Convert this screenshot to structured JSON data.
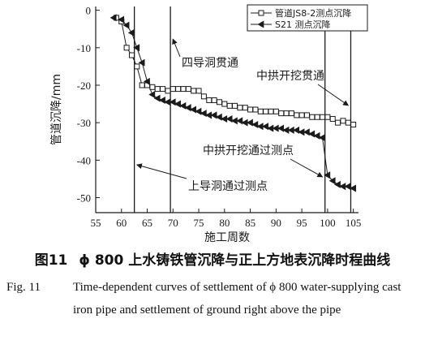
{
  "figure": {
    "caption_cn_id": "图11",
    "caption_cn_text": "ϕ 800 上水铸铁管沉降与正上方地表沉降时程曲线",
    "caption_en_id": "Fig. 11",
    "caption_en_text": "Time-dependent curves of settlement of ϕ 800 water-supplying cast iron pipe and settlement of ground right above the pipe"
  },
  "colors": {
    "ink": "#1a1a1a",
    "background": "#ffffff"
  },
  "chart_data": {
    "type": "line",
    "xlabel": "施工周数",
    "ylabel": "管道沉降/mm",
    "xlim": [
      55,
      106
    ],
    "ylim": [
      -54,
      1
    ],
    "xticks": [
      55,
      60,
      65,
      70,
      75,
      80,
      85,
      90,
      95,
      100,
      105
    ],
    "yticks": [
      0,
      -10,
      -20,
      -30,
      -40,
      -50
    ],
    "legend_position": "top-right",
    "series": [
      {
        "name": "管道JS8-2测点沉降",
        "marker": "open-square",
        "x": [
          59,
          60,
          61,
          62,
          63,
          64,
          65,
          66,
          67,
          68,
          69,
          70,
          71,
          72,
          73,
          74,
          75,
          76,
          77,
          78,
          79,
          80,
          81,
          82,
          83,
          84,
          85,
          86,
          87,
          88,
          89,
          90,
          91,
          92,
          93,
          94,
          95,
          96,
          97,
          98,
          99,
          100,
          101,
          102,
          103,
          104,
          105
        ],
        "y": [
          -2,
          -3,
          -10,
          -12,
          -15,
          -20,
          -20,
          -20.5,
          -21,
          -21,
          -21.5,
          -21,
          -21,
          -21,
          -21,
          -21.5,
          -21.5,
          -23,
          -24,
          -24,
          -24.5,
          -25,
          -25.5,
          -25.5,
          -26,
          -26,
          -26.5,
          -26.5,
          -27,
          -27,
          -27,
          -27,
          -27.5,
          -27.5,
          -27.5,
          -28,
          -28,
          -28,
          -28.5,
          -28.5,
          -28.5,
          -28.5,
          -29,
          -30,
          -29.5,
          -30,
          -30.5
        ]
      },
      {
        "name": "S21 测点沉降",
        "marker": "filled-left-triangle",
        "x": [
          58.5,
          60,
          61,
          62,
          63,
          64,
          65,
          66,
          67,
          68,
          69,
          70,
          71,
          72,
          73,
          74,
          75,
          76,
          77,
          78,
          79,
          80,
          81,
          82,
          83,
          84,
          85,
          86,
          87,
          88,
          89,
          90,
          91,
          92,
          93,
          94,
          95,
          96,
          97,
          98,
          99,
          100,
          101,
          102,
          103,
          104,
          105
        ],
        "y": [
          -2,
          -2.5,
          -4,
          -6,
          -10,
          -14,
          -19,
          -22.5,
          -23.5,
          -24,
          -24.5,
          -24.5,
          -25,
          -25.5,
          -26,
          -26.5,
          -27,
          -27.5,
          -28,
          -28,
          -28.5,
          -29,
          -29,
          -29.5,
          -29.5,
          -30,
          -30,
          -30.5,
          -31,
          -31,
          -31.5,
          -31.5,
          -31.5,
          -32,
          -32,
          -32,
          -32.5,
          -32.5,
          -33,
          -33.5,
          -34,
          -44,
          -45.5,
          -46.5,
          -47,
          -47,
          -47.5
        ]
      }
    ],
    "vertical_lines": [
      62.5,
      69.5,
      99.5,
      104.5
    ],
    "annotations": [
      {
        "text": "四导洞贯通",
        "at": [
          69.5,
          -10
        ]
      },
      {
        "text": "中拱开挖贯通",
        "at": [
          104.5,
          -25
        ]
      },
      {
        "text": "中拱开挖通过测点",
        "at": [
          99.5,
          -44
        ]
      },
      {
        "text": "上导洞通过测点",
        "at": [
          62.5,
          -41
        ]
      }
    ]
  }
}
